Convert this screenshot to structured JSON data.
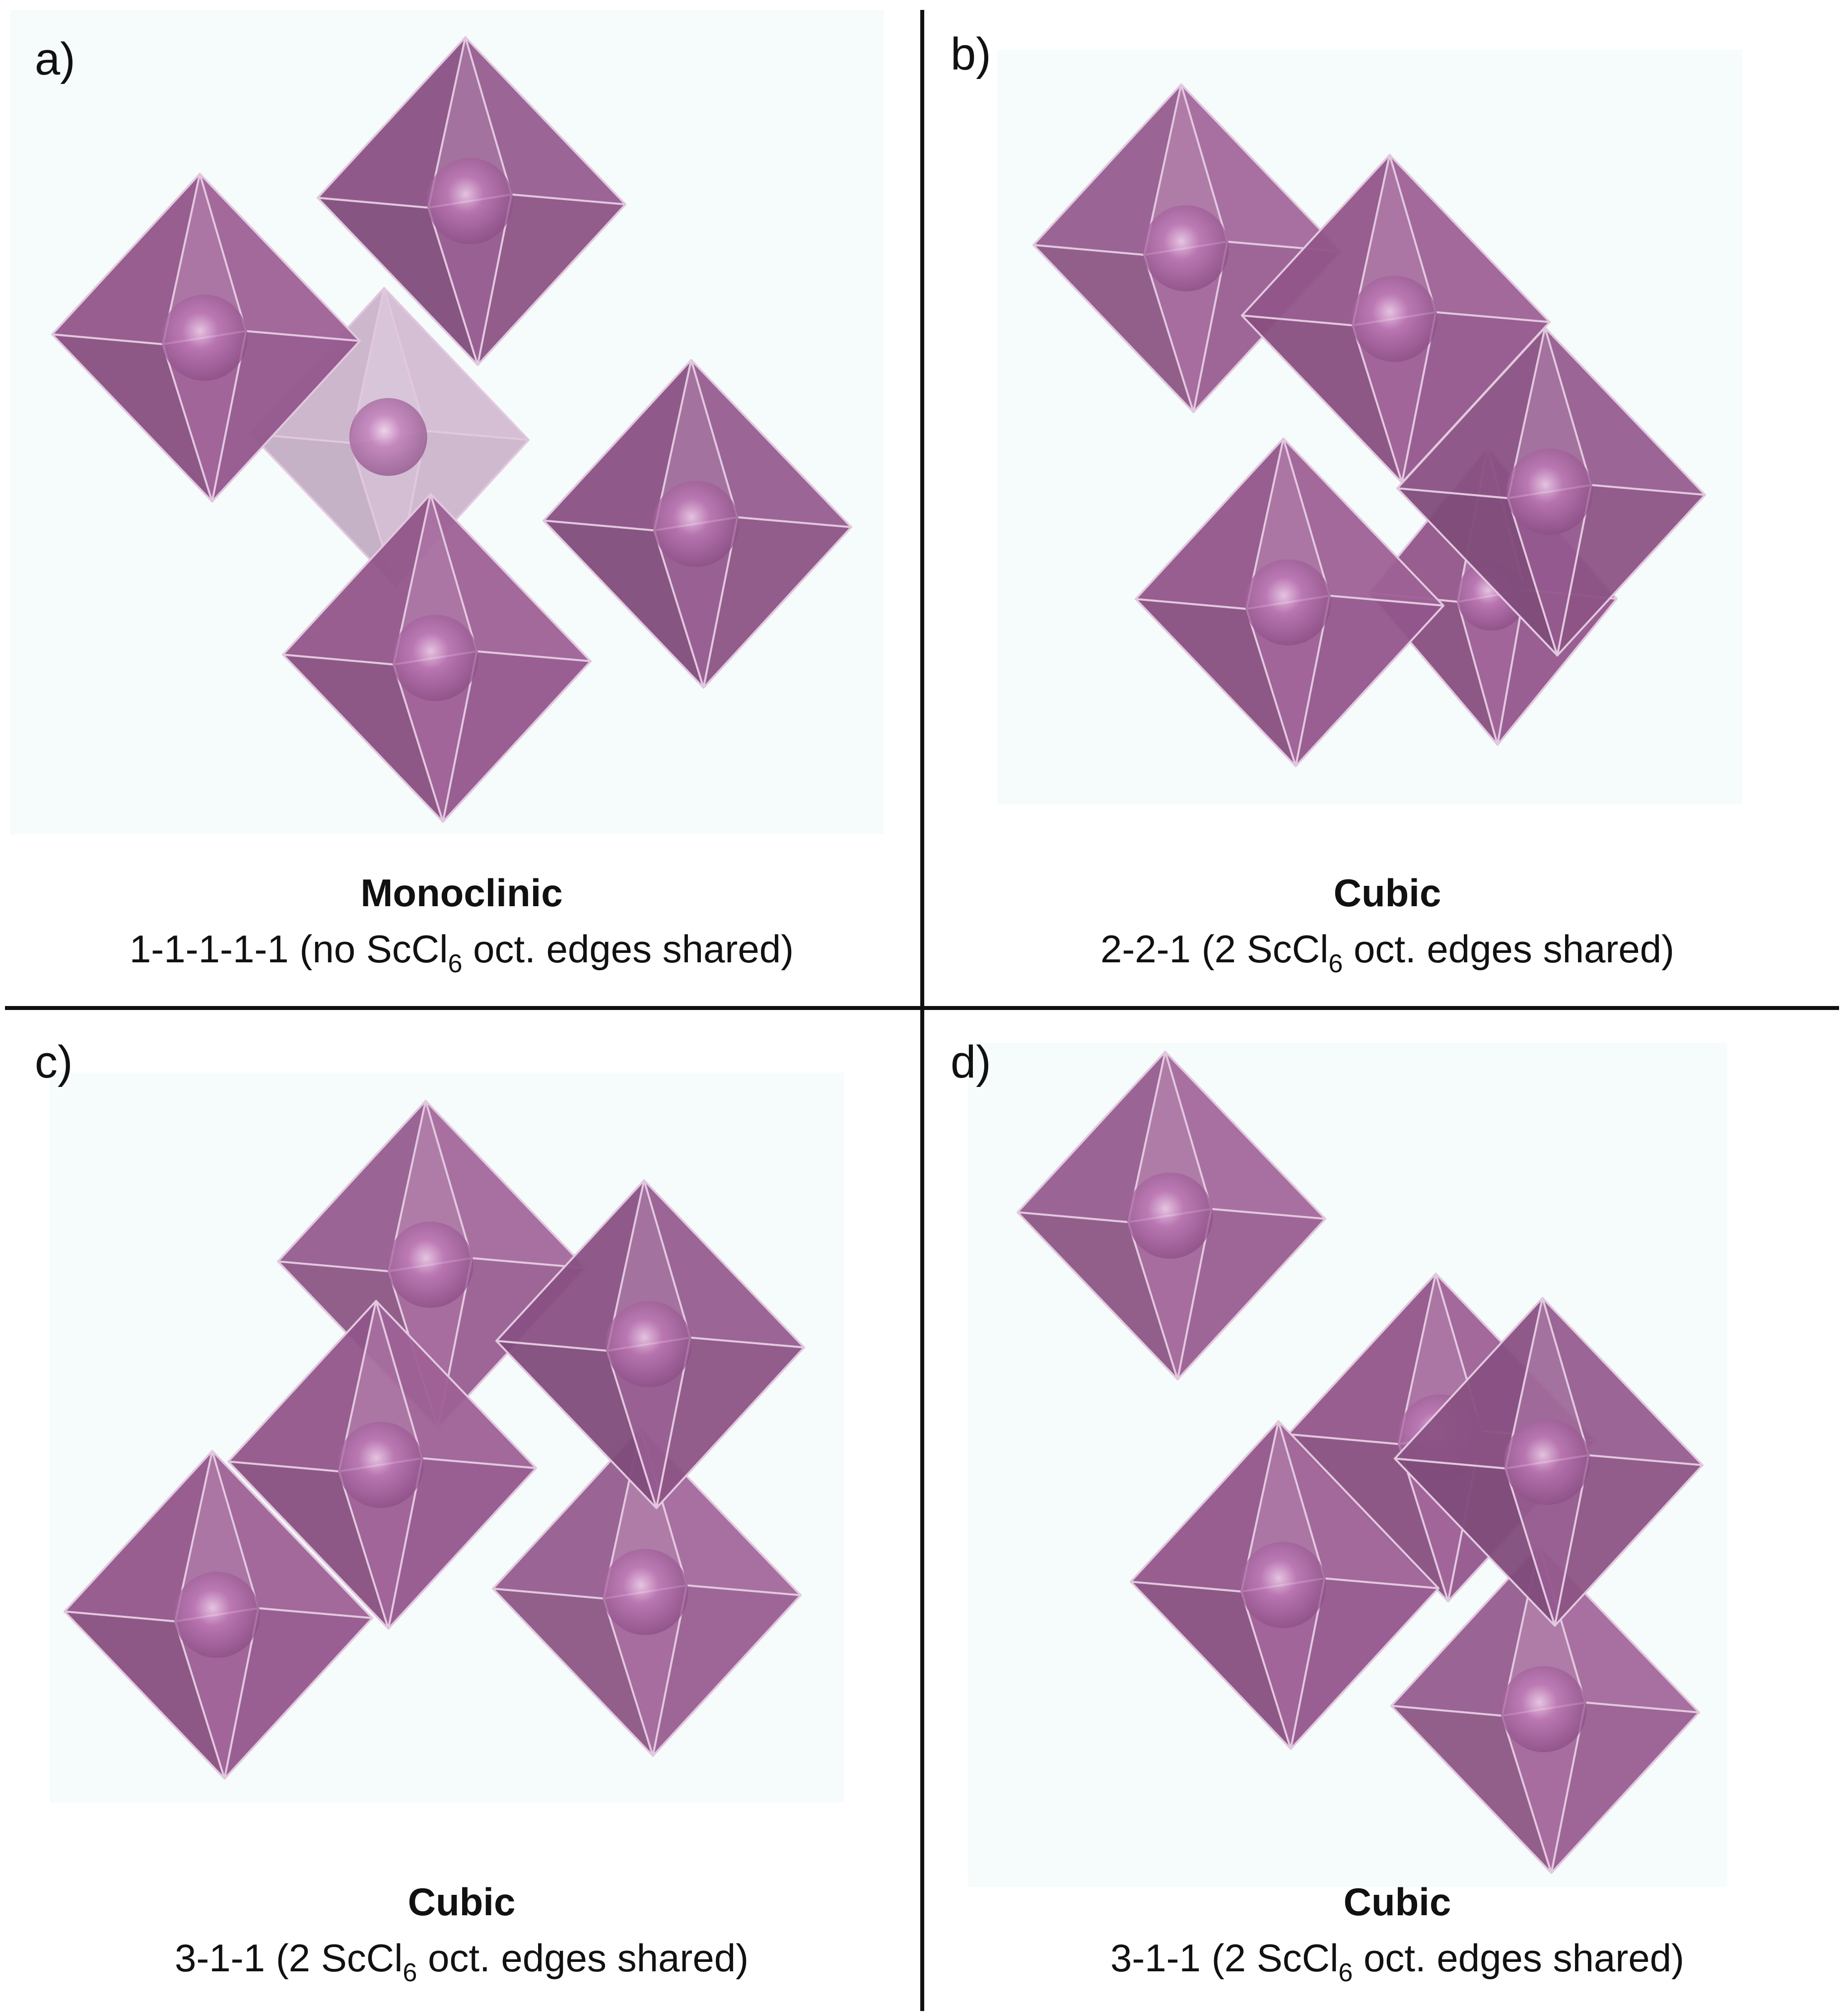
{
  "panels": [
    {
      "letter": "a)",
      "title": "Monoclinic",
      "sub_prefix": "1-1-1-1-1 (no ScCl",
      "sub_index": "6",
      "sub_suffix": " oct. edges shared)"
    },
    {
      "letter": "b)",
      "title": "Cubic",
      "sub_prefix": "2-2-1 (2 ScCl",
      "sub_index": "6",
      "sub_suffix": " oct. edges shared)"
    },
    {
      "letter": "c)",
      "title": "Cubic",
      "sub_prefix": "3-1-1 (2 ScCl",
      "sub_index": "6",
      "sub_suffix": " oct. edges shared)"
    },
    {
      "letter": "d)",
      "title": "Cubic",
      "sub_prefix": "3-1-1 (2 ScCl",
      "sub_index": "6",
      "sub_suffix": " oct. edges shared)"
    }
  ],
  "colors": {
    "octahedron": "#9a5a92",
    "highlight": "#c48cbf",
    "edge": "#e2c8df",
    "background": "#f6fbfc",
    "divider": "#111111"
  }
}
